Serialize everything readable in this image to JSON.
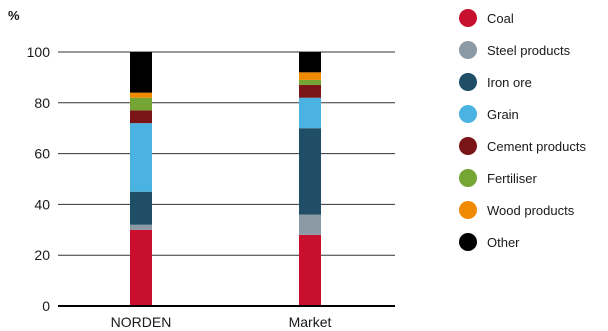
{
  "chart_data": {
    "type": "bar",
    "stacked": true,
    "ylabel": "%",
    "ylim": [
      0,
      100
    ],
    "yticks": [
      0,
      20,
      40,
      60,
      80,
      100
    ],
    "categories": [
      "NORDEN",
      "Market"
    ],
    "grid": "horizontal",
    "legend_position": "right",
    "series": [
      {
        "name": "Coal",
        "color": "#c8102e",
        "values": [
          30,
          28
        ]
      },
      {
        "name": "Steel products",
        "color": "#8c9aa5",
        "values": [
          2,
          8
        ]
      },
      {
        "name": "Iron ore",
        "color": "#1f4e66",
        "values": [
          13,
          34
        ]
      },
      {
        "name": "Grain",
        "color": "#4bb3e1",
        "values": [
          27,
          12
        ]
      },
      {
        "name": "Cement products",
        "color": "#7a1416",
        "values": [
          5,
          5
        ]
      },
      {
        "name": "Fertiliser",
        "color": "#74a535",
        "values": [
          5,
          2
        ]
      },
      {
        "name": "Wood products",
        "color": "#f08a00",
        "values": [
          2,
          3
        ]
      },
      {
        "name": "Other",
        "color": "#000000",
        "values": [
          16,
          8
        ]
      }
    ]
  }
}
